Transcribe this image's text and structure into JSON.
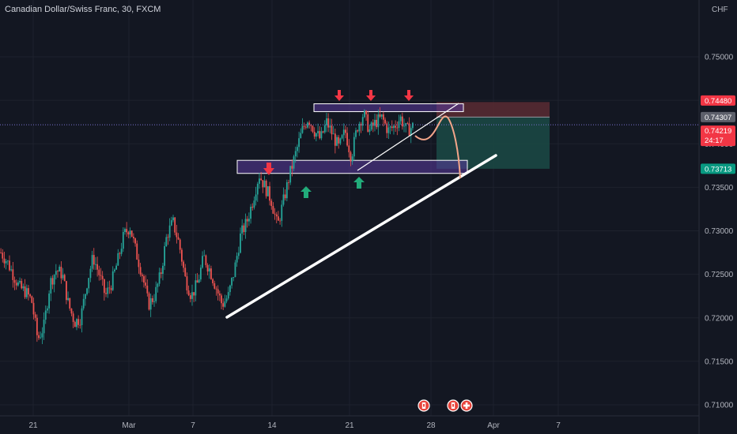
{
  "header": {
    "title": "Canadian Dollar/Swiss Franc, 30, FXCM",
    "currency": "CHF"
  },
  "colors": {
    "background": "#131722",
    "up": "#26a69a",
    "down": "#ef5350",
    "zone_fill": "#5b3a9e",
    "zone_border": "#ffffff",
    "stop_zone": "#5a2b33",
    "target_zone": "#1b4a45",
    "path_line": "#f3a58a",
    "arrow_down": "#f23645",
    "arrow_up": "#22ab7a",
    "trendline": "#ffffff",
    "price_tag_red": "#f23645",
    "price_tag_gray": "#5d606b",
    "price_tag_green": "#089981"
  },
  "chart_data": {
    "type": "candlestick",
    "title": "Canadian Dollar/Swiss Franc, 30, FXCM",
    "y_unit": "CHF",
    "ylim": [
      0.71,
      0.7538
    ],
    "x_tick_labels": [
      "21",
      "Mar",
      "7",
      "14",
      "21",
      "28",
      "Apr",
      "7"
    ],
    "y_tick_labels": [
      "0.75000",
      "0.74500",
      "0.74000",
      "0.73500",
      "0.73000",
      "0.72500",
      "0.72000",
      "0.71500",
      "0.71000"
    ],
    "y_ticks": [
      0.75,
      0.745,
      0.74,
      0.735,
      0.73,
      0.725,
      0.72,
      0.715,
      0.71
    ],
    "price_path": [
      0.7275,
      0.7265,
      0.725,
      0.7235,
      0.723,
      0.722,
      0.7175,
      0.719,
      0.724,
      0.7255,
      0.725,
      0.7215,
      0.7195,
      0.72,
      0.724,
      0.727,
      0.725,
      0.7225,
      0.724,
      0.7265,
      0.7295,
      0.7305,
      0.7275,
      0.725,
      0.7215,
      0.7225,
      0.725,
      0.7295,
      0.731,
      0.7285,
      0.7245,
      0.7225,
      0.724,
      0.727,
      0.7255,
      0.7235,
      0.7215,
      0.7225,
      0.7255,
      0.7295,
      0.731,
      0.7335,
      0.7365,
      0.735,
      0.7335,
      0.7305,
      0.7335,
      0.7365,
      0.739,
      0.7415,
      0.743,
      0.7415,
      0.7405,
      0.7425,
      0.741,
      0.7395,
      0.7415,
      0.7385,
      0.742,
      0.7435,
      0.7415,
      0.7425,
      0.743,
      0.7415,
      0.742,
      0.743,
      0.7415,
      0.742
    ],
    "price_tags": [
      {
        "label": "0.74480",
        "value": 0.7448,
        "color": "price_tag_red"
      },
      {
        "label": "0.74307",
        "value": 0.74307,
        "color": "price_tag_gray"
      },
      {
        "label": "0.74219",
        "sub_label": "24:17",
        "value": 0.74219,
        "color": "price_tag_red"
      },
      {
        "label": "0.73713",
        "value": 0.73713,
        "color": "price_tag_green"
      }
    ],
    "current_price": 0.74219,
    "zones": [
      {
        "name": "resistance",
        "from": 0.7437,
        "to": 0.7446
      },
      {
        "name": "support",
        "from": 0.7366,
        "to": 0.7381
      }
    ],
    "position": {
      "stop": 0.7448,
      "entry": 0.74307,
      "target": 0.73713
    },
    "event_markers": [
      "CA",
      "CA",
      "CH"
    ]
  }
}
